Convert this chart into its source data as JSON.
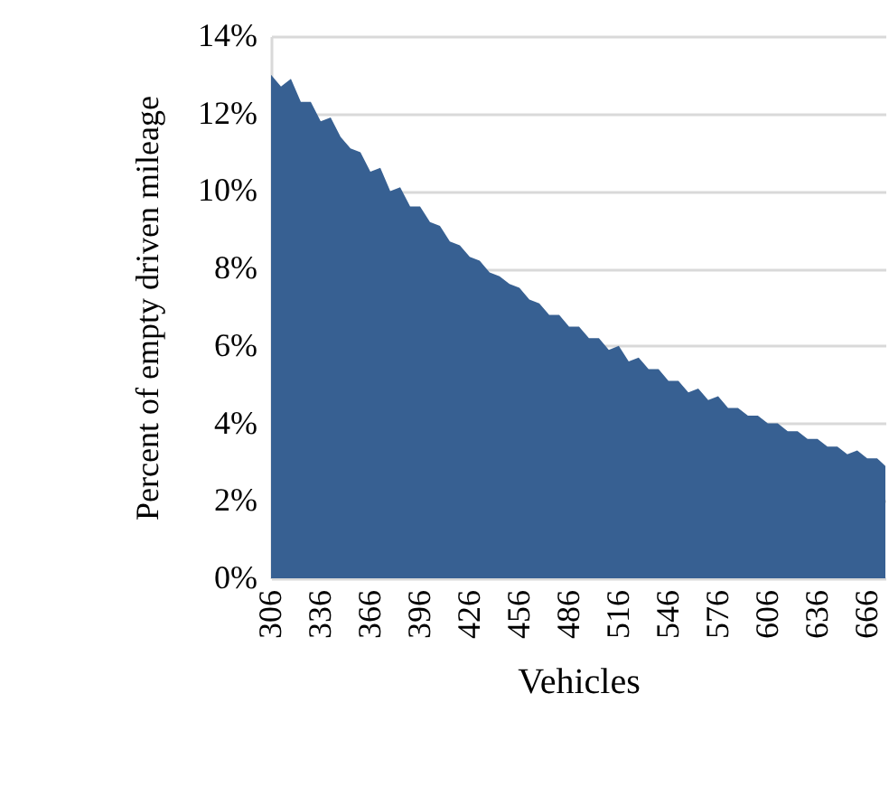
{
  "chart_data": {
    "type": "area",
    "xlabel": "Vehicles",
    "ylabel": "Percent of empty driven mileage",
    "x": [
      306,
      312,
      318,
      324,
      330,
      336,
      342,
      348,
      354,
      360,
      366,
      372,
      378,
      384,
      390,
      396,
      402,
      408,
      414,
      420,
      426,
      432,
      438,
      444,
      450,
      456,
      462,
      468,
      474,
      480,
      486,
      492,
      498,
      504,
      510,
      516,
      522,
      528,
      534,
      540,
      546,
      552,
      558,
      564,
      570,
      576,
      582,
      588,
      594,
      600,
      606,
      612,
      618,
      624,
      630,
      636,
      642,
      648,
      654,
      660,
      666,
      672,
      677
    ],
    "series": [
      {
        "color": "#376092",
        "values": [
          13.0,
          12.7,
          12.9,
          12.3,
          12.3,
          11.8,
          11.9,
          11.4,
          11.1,
          11.0,
          10.5,
          10.6,
          10.0,
          10.1,
          9.6,
          9.6,
          9.2,
          9.1,
          8.7,
          8.6,
          8.3,
          8.2,
          7.9,
          7.8,
          7.6,
          7.5,
          7.2,
          7.1,
          6.8,
          6.8,
          6.5,
          6.5,
          6.2,
          6.2,
          5.9,
          6.0,
          5.6,
          5.7,
          5.4,
          5.4,
          5.1,
          5.1,
          4.8,
          4.9,
          4.6,
          4.7,
          4.4,
          4.4,
          4.2,
          4.2,
          4.0,
          4.0,
          3.8,
          3.8,
          3.6,
          3.6,
          3.4,
          3.4,
          3.2,
          3.3,
          3.1,
          3.1,
          2.9
        ]
      }
    ],
    "xlim": [
      306,
      677
    ],
    "xticks": [
      306,
      336,
      366,
      396,
      426,
      456,
      486,
      516,
      546,
      576,
      606,
      636,
      666
    ],
    "ylim": [
      0,
      14
    ],
    "yticks": [
      {
        "value": 0,
        "label": "0%"
      },
      {
        "value": 2,
        "label": "2%"
      },
      {
        "value": 4,
        "label": "4%"
      },
      {
        "value": 6,
        "label": "6%"
      },
      {
        "value": 8,
        "label": "8%"
      },
      {
        "value": 10,
        "label": "10%"
      },
      {
        "value": 12,
        "label": "12%"
      },
      {
        "value": 14,
        "label": "14%"
      }
    ],
    "grid": "y"
  }
}
